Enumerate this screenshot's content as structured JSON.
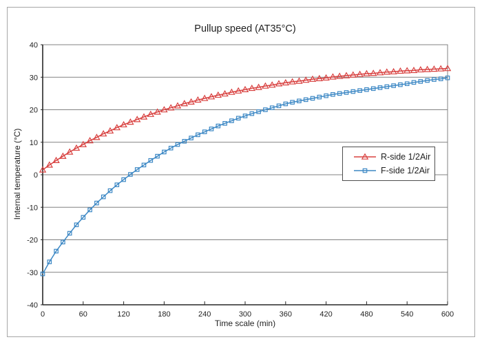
{
  "chart_data": {
    "type": "line",
    "title": "Pullup speed (AT35°C)",
    "xlabel": "Time scale (min)",
    "ylabel": "Internal temperature (°C)",
    "xlim": [
      0,
      600
    ],
    "ylim": [
      -40,
      40
    ],
    "x_ticks": [
      0,
      60,
      120,
      180,
      240,
      300,
      360,
      420,
      480,
      540,
      600
    ],
    "y_ticks": [
      -40,
      -30,
      -20,
      -10,
      0,
      10,
      20,
      30,
      40
    ],
    "grid": "horizontal",
    "legend_position": "middle-right",
    "colors": {
      "r_side": "#d8403f",
      "f_side": "#3b87c4",
      "gridline": "#808080",
      "axis": "#262626",
      "frame": "#a6a6a6"
    },
    "x": [
      0,
      10,
      20,
      30,
      40,
      50,
      60,
      70,
      80,
      90,
      100,
      110,
      120,
      130,
      140,
      150,
      160,
      170,
      180,
      190,
      200,
      210,
      220,
      230,
      240,
      250,
      260,
      270,
      280,
      290,
      300,
      310,
      320,
      330,
      340,
      350,
      360,
      370,
      380,
      390,
      400,
      410,
      420,
      430,
      440,
      450,
      460,
      470,
      480,
      490,
      500,
      510,
      520,
      530,
      540,
      550,
      560,
      570,
      580,
      590,
      600
    ],
    "series": [
      {
        "name": "R-side 1/2Air",
        "color": "#d8403f",
        "marker": "triangle",
        "values": [
          1.5,
          3.0,
          4.4,
          5.7,
          7.0,
          8.2,
          9.3,
          10.5,
          11.5,
          12.6,
          13.5,
          14.5,
          15.4,
          16.2,
          17.0,
          17.8,
          18.6,
          19.3,
          20.0,
          20.6,
          21.2,
          21.9,
          22.4,
          23.0,
          23.5,
          24.0,
          24.5,
          24.9,
          25.4,
          25.8,
          26.2,
          26.6,
          26.9,
          27.3,
          27.6,
          28.0,
          28.3,
          28.6,
          28.8,
          29.1,
          29.4,
          29.6,
          29.8,
          30.1,
          30.3,
          30.5,
          30.7,
          30.9,
          31.1,
          31.2,
          31.4,
          31.6,
          31.7,
          31.9,
          32.0,
          32.1,
          32.3,
          32.4,
          32.5,
          32.6,
          32.7
        ]
      },
      {
        "name": "F-side 1/2Air",
        "color": "#3b87c4",
        "marker": "square",
        "values": [
          -30.5,
          -26.8,
          -23.5,
          -20.7,
          -18.0,
          -15.4,
          -13.1,
          -10.8,
          -8.7,
          -6.8,
          -4.9,
          -3.1,
          -1.5,
          0.1,
          1.6,
          3.0,
          4.4,
          5.7,
          7.0,
          8.2,
          9.3,
          10.3,
          11.3,
          12.3,
          13.2,
          14.1,
          15.0,
          15.8,
          16.6,
          17.4,
          18.1,
          18.8,
          19.4,
          20.0,
          20.6,
          21.2,
          21.8,
          22.3,
          22.7,
          23.1,
          23.5,
          23.9,
          24.3,
          24.7,
          25.0,
          25.3,
          25.6,
          25.9,
          26.2,
          26.5,
          26.8,
          27.1,
          27.4,
          27.7,
          28.0,
          28.4,
          28.7,
          29.0,
          29.3,
          29.5,
          29.8
        ]
      }
    ]
  }
}
